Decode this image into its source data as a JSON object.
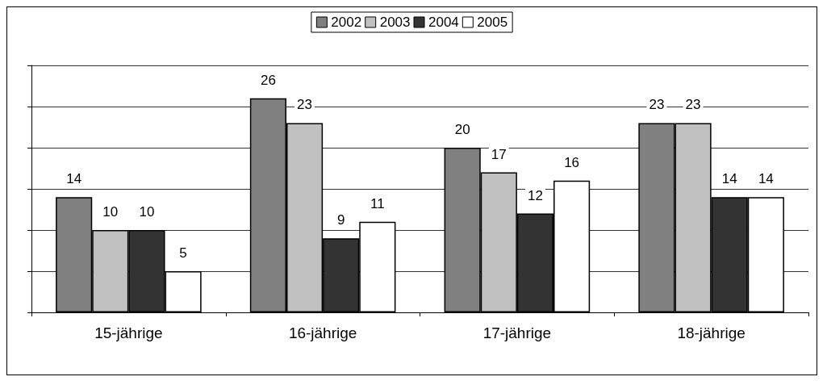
{
  "chart_data": {
    "type": "bar",
    "categories": [
      "15-jährige",
      "16-jährige",
      "17-jährige",
      "18-jährige"
    ],
    "series": [
      {
        "name": "2002",
        "color": "#808080",
        "values": [
          14,
          26,
          20,
          23
        ]
      },
      {
        "name": "2003",
        "color": "#c0c0c0",
        "values": [
          10,
          23,
          17,
          23
        ]
      },
      {
        "name": "2004",
        "color": "#333333",
        "values": [
          10,
          9,
          12,
          14
        ]
      },
      {
        "name": "2005",
        "color": "#ffffff",
        "values": [
          5,
          11,
          16,
          14
        ]
      }
    ],
    "tick_labels": "x",
    "grid": "y",
    "legend": "top",
    "data_labels": true
  }
}
